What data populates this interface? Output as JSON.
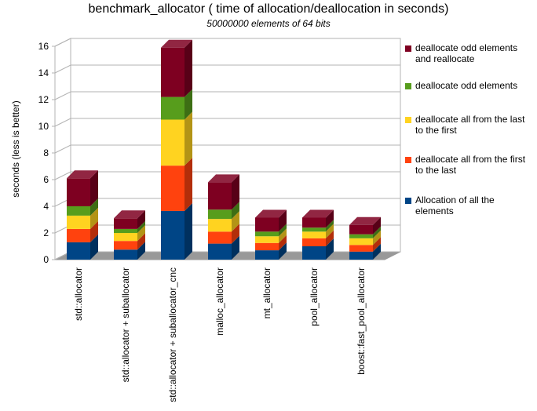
{
  "chart_data": {
    "type": "bar3d_stacked",
    "title": "benchmark_allocator ( time of allocation/deallocation in seconds)",
    "subtitle": "50000000 elements of 64 bits",
    "y_label": "seconds (less is better)",
    "categories": [
      "std::allocator",
      "std::allocator + suballocator",
      "std::allocator + suballocator_cnc",
      "malloc_allocator",
      "mt_allocator",
      "pool_allocator",
      "boost::fast_pool_allocator"
    ],
    "series": [
      {
        "name": "Allocation of all the elements",
        "color": "#004586",
        "values": [
          1.3,
          0.75,
          3.65,
          1.2,
          0.7,
          1.0,
          0.6
        ]
      },
      {
        "name": "deallocate all from the first to the last",
        "color": "#ff420e",
        "values": [
          1.0,
          0.65,
          3.4,
          0.9,
          0.55,
          0.6,
          0.5
        ]
      },
      {
        "name": "deallocate all from the last to the first",
        "color": "#ffd320",
        "values": [
          1.0,
          0.6,
          3.45,
          0.95,
          0.5,
          0.5,
          0.5
        ]
      },
      {
        "name": "deallocate odd elements",
        "color": "#579d1c",
        "values": [
          0.7,
          0.3,
          1.7,
          0.7,
          0.35,
          0.3,
          0.3
        ]
      },
      {
        "name": "deallocate odd elements and reallocate",
        "color": "#7e0021",
        "values": [
          2.1,
          0.8,
          3.7,
          2.05,
          1.05,
          0.75,
          0.7
        ]
      }
    ],
    "ylim": [
      0,
      16
    ],
    "yticks": [
      0,
      2,
      4,
      6,
      8,
      10,
      12,
      14,
      16
    ],
    "grid": true
  }
}
